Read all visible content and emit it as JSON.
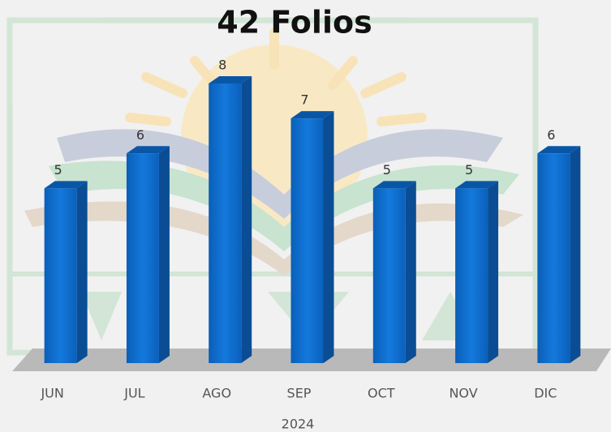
{
  "chart_data": {
    "type": "bar3d",
    "title": "42 Folios",
    "xlabel": "2024",
    "categories": [
      "JUN",
      "JUL",
      "AGO",
      "SEP",
      "OCT",
      "NOV",
      "DIC"
    ],
    "values": [
      5,
      6,
      8,
      7,
      5,
      5,
      6
    ],
    "color": "#0b6fd1",
    "ylim": [
      0,
      8
    ]
  }
}
